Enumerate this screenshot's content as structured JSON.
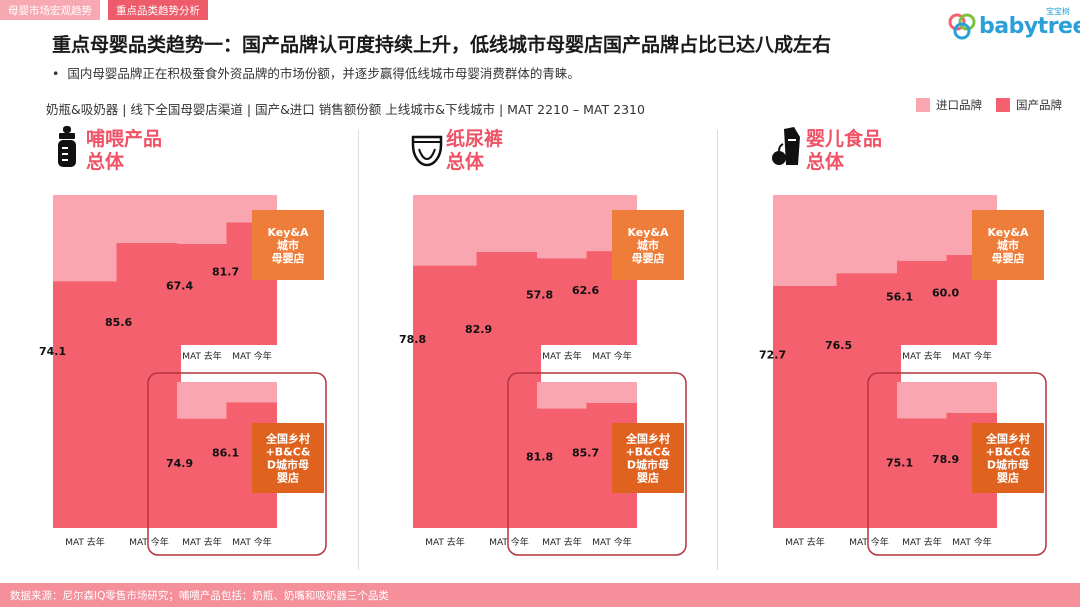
{
  "tabs": [
    "母婴市场宏观趋势",
    "重点品类趋势分析"
  ],
  "logo": {
    "text": "babytree",
    "sub": "宝宝树"
  },
  "headline": "重点母婴品类趋势一：国产品牌认可度持续上升，低线城市母婴店国产品牌占比已达八成左右",
  "bullet": "国内母婴品牌正在积极蚕食外资品牌的市场份额，并逐步赢得低线城市母婴消费群体的青睐。",
  "filter": "奶瓶&吸奶器 | 线下全国母婴店渠道 | 国产&进口 销售额份额 上线城市&下线城市 | MAT 2210 – MAT 2310",
  "legend": [
    {
      "label": "进口品牌",
      "color": "#f9a6b0"
    },
    {
      "label": "国产品牌",
      "color": "#f4606e"
    }
  ],
  "footer": "数据来源：尼尔森IQ零售市场研究；哺喂产品包括：奶瓶、奶嘴和吸奶器三个品类",
  "chart_data": [
    {
      "type": "bar",
      "category": "哺喂产品",
      "title": [
        "哺喂产品",
        "总体"
      ],
      "icon": "baby-bottle-icon",
      "unit": "%",
      "ylim": [
        0,
        100
      ],
      "series_names": [
        "国产品牌",
        "进口品牌"
      ],
      "groups": [
        {
          "name": "总体",
          "categories": [
            "MAT 去年",
            "MAT 今年"
          ],
          "values": [
            74.1,
            85.6
          ]
        },
        {
          "name": "Key&A城市母婴店",
          "label": [
            "Key&A",
            "城市",
            "母婴店"
          ],
          "categories": [
            "MAT 去年",
            "MAT 今年"
          ],
          "values": [
            67.4,
            81.7
          ]
        },
        {
          "name": "全国乡村+B&C&D城市母婴店",
          "label": [
            "全国乡村",
            "+B&C&",
            "D城市母",
            "婴店"
          ],
          "categories": [
            "MAT 去年",
            "MAT 今年"
          ],
          "values": [
            74.9,
            86.1
          ]
        }
      ]
    },
    {
      "type": "bar",
      "category": "纸尿裤",
      "title": [
        "纸尿裤",
        "总体"
      ],
      "icon": "diaper-icon",
      "unit": "%",
      "ylim": [
        0,
        100
      ],
      "series_names": [
        "国产品牌",
        "进口品牌"
      ],
      "groups": [
        {
          "name": "总体",
          "categories": [
            "MAT 去年",
            "MAT 今年"
          ],
          "values": [
            78.8,
            82.9
          ]
        },
        {
          "name": "Key&A城市母婴店",
          "label": [
            "Key&A",
            "城市",
            "母婴店"
          ],
          "categories": [
            "MAT 去年",
            "MAT 今年"
          ],
          "values": [
            57.8,
            62.6
          ]
        },
        {
          "name": "全国乡村+B&C&D城市母婴店",
          "label": [
            "全国乡村",
            "+B&C&",
            "D城市母",
            "婴店"
          ],
          "categories": [
            "MAT 去年",
            "MAT 今年"
          ],
          "values": [
            81.8,
            85.7
          ]
        }
      ]
    },
    {
      "type": "bar",
      "category": "婴儿食品",
      "title": [
        "婴儿食品",
        "总体"
      ],
      "icon": "baby-food-icon",
      "unit": "%",
      "ylim": [
        0,
        100
      ],
      "series_names": [
        "国产品牌",
        "进口品牌"
      ],
      "groups": [
        {
          "name": "总体",
          "categories": [
            "MAT 去年",
            "MAT 今年"
          ],
          "values": [
            72.7,
            76.5
          ]
        },
        {
          "name": "Key&A城市母婴店",
          "label": [
            "Key&A",
            "城市",
            "母婴店"
          ],
          "categories": [
            "MAT 去年",
            "MAT 今年"
          ],
          "values": [
            56.1,
            60.0
          ]
        },
        {
          "name": "全国乡村+B&C&D城市母婴店",
          "label": [
            "全国乡村",
            "+B&C&",
            "D城市母",
            "婴店"
          ],
          "categories": [
            "MAT 去年",
            "MAT 今年"
          ],
          "values": [
            75.1,
            78.9
          ]
        }
      ]
    }
  ]
}
